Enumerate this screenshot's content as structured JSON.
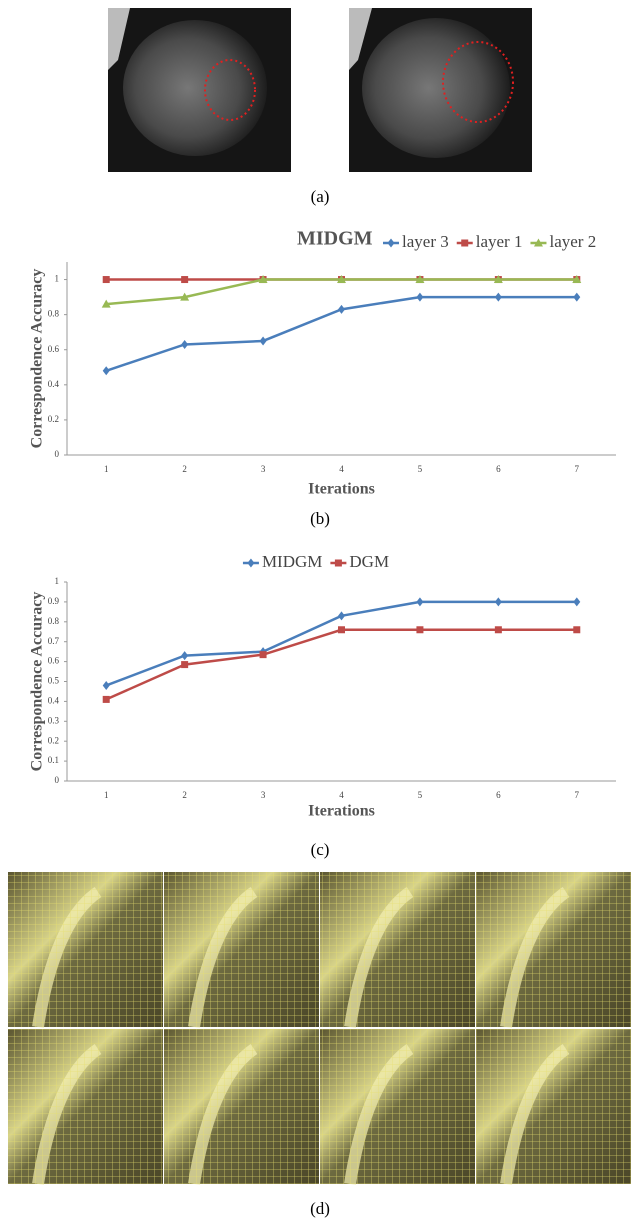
{
  "captions": [
    "(a)",
    "(b)",
    "(c)",
    "(d)"
  ],
  "chart_data": [
    {
      "type": "line",
      "title": "MIDGM",
      "x_label": "Iterations",
      "y_label": "Correspondence Accuracy",
      "x": [
        1,
        2,
        3,
        4,
        5,
        6,
        7
      ],
      "xlim": [
        0.5,
        7.5
      ],
      "xticks": [
        1,
        2,
        3,
        4,
        5,
        6,
        7
      ],
      "ylim": [
        0,
        1.1
      ],
      "yticks": [
        0,
        0.2,
        0.4,
        0.6,
        0.8,
        1
      ],
      "legend": "top-right",
      "series": [
        {
          "name": "layer 3",
          "color": "#4a7ebb",
          "marker": "diamond",
          "values": [
            0.48,
            0.63,
            0.65,
            0.83,
            0.9,
            0.9,
            0.9
          ]
        },
        {
          "name": "layer 1",
          "color": "#be4b48",
          "marker": "square",
          "values": [
            1,
            1,
            1,
            1,
            1,
            1,
            1
          ]
        },
        {
          "name": "layer 2",
          "color": "#98b954",
          "marker": "triangle",
          "values": [
            0.86,
            0.9,
            1,
            1,
            1,
            1,
            1
          ]
        }
      ]
    },
    {
      "type": "line",
      "x_label": "Iterations",
      "y_label": "Correspondence Accuracy",
      "x": [
        1,
        2,
        3,
        4,
        5,
        6,
        7
      ],
      "xlim": [
        0.5,
        7.5
      ],
      "xticks": [
        1,
        2,
        3,
        4,
        5,
        6,
        7
      ],
      "ylim": [
        0,
        1
      ],
      "yticks": [
        0,
        0.1,
        0.2,
        0.3,
        0.4,
        0.5,
        0.6,
        0.7,
        0.8,
        0.9,
        1
      ],
      "legend": "top",
      "series": [
        {
          "name": "MIDGM",
          "color": "#4a7ebb",
          "marker": "diamond",
          "values": [
            0.48,
            0.63,
            0.65,
            0.83,
            0.9,
            0.9,
            0.9
          ]
        },
        {
          "name": "DGM",
          "color": "#be4b48",
          "marker": "square",
          "values": [
            0.41,
            0.585,
            0.635,
            0.76,
            0.76,
            0.76,
            0.76
          ]
        }
      ]
    }
  ]
}
